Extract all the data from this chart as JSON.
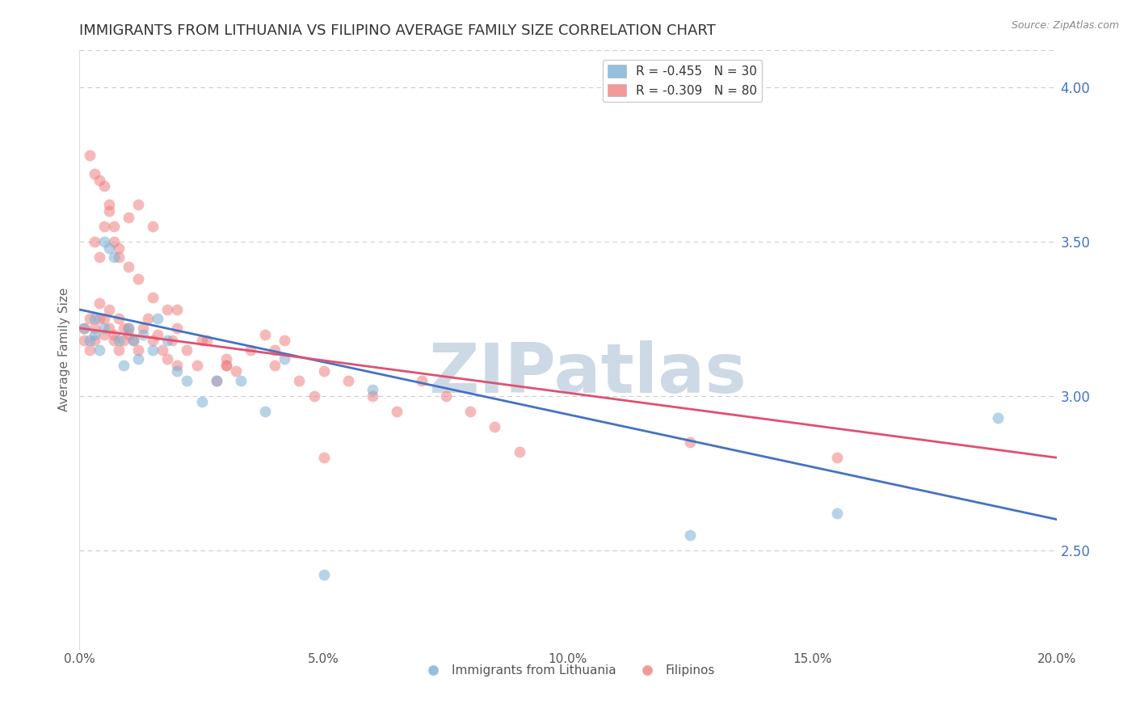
{
  "title": "IMMIGRANTS FROM LITHUANIA VS FILIPINO AVERAGE FAMILY SIZE CORRELATION CHART",
  "source": "Source: ZipAtlas.com",
  "ylabel": "Average Family Size",
  "xlim": [
    0,
    0.2
  ],
  "ylim": [
    2.18,
    4.12
  ],
  "right_yticks": [
    2.5,
    3.0,
    3.5,
    4.0
  ],
  "xtick_labels": [
    "0.0%",
    "",
    "",
    "",
    "",
    "5.0%",
    "",
    "",
    "",
    "",
    "10.0%",
    "",
    "",
    "",
    "",
    "15.0%",
    "",
    "",
    "",
    "",
    "20.0%"
  ],
  "xtick_values": [
    0.0,
    0.01,
    0.02,
    0.03,
    0.04,
    0.05,
    0.06,
    0.07,
    0.08,
    0.09,
    0.1,
    0.11,
    0.12,
    0.13,
    0.14,
    0.15,
    0.16,
    0.17,
    0.18,
    0.19,
    0.2
  ],
  "grid_color": "#cccccc",
  "background_color": "#ffffff",
  "watermark_text": "ZIPatlas",
  "watermark_color": "#cdd9e5",
  "legend_blue_label": "R = -0.455   N = 30",
  "legend_pink_label": "R = -0.309   N = 80",
  "blue_color": "#7bafd4",
  "pink_color": "#f08080",
  "blue_line_color": "#4472c4",
  "pink_line_color": "#e05070",
  "title_fontsize": 13,
  "axis_label_fontsize": 11,
  "tick_fontsize": 11,
  "legend_fontsize": 11,
  "scatter_alpha": 0.55,
  "scatter_size": 100,
  "blue_x": [
    0.001,
    0.002,
    0.003,
    0.003,
    0.004,
    0.005,
    0.005,
    0.006,
    0.007,
    0.008,
    0.009,
    0.01,
    0.011,
    0.012,
    0.013,
    0.015,
    0.016,
    0.018,
    0.02,
    0.022,
    0.025,
    0.028,
    0.033,
    0.038,
    0.042,
    0.05,
    0.06,
    0.125,
    0.155,
    0.188
  ],
  "blue_y": [
    3.22,
    3.18,
    3.25,
    3.2,
    3.15,
    3.22,
    3.5,
    3.48,
    3.45,
    3.18,
    3.1,
    3.22,
    3.18,
    3.12,
    3.2,
    3.15,
    3.25,
    3.18,
    3.08,
    3.05,
    2.98,
    3.05,
    3.05,
    2.95,
    3.12,
    2.42,
    3.02,
    2.55,
    2.62,
    2.93
  ],
  "pink_x": [
    0.001,
    0.001,
    0.002,
    0.002,
    0.003,
    0.003,
    0.004,
    0.004,
    0.005,
    0.005,
    0.006,
    0.006,
    0.007,
    0.007,
    0.008,
    0.008,
    0.009,
    0.009,
    0.01,
    0.01,
    0.011,
    0.012,
    0.013,
    0.014,
    0.015,
    0.016,
    0.017,
    0.018,
    0.019,
    0.02,
    0.022,
    0.024,
    0.026,
    0.028,
    0.03,
    0.032,
    0.035,
    0.038,
    0.04,
    0.042,
    0.045,
    0.048,
    0.05,
    0.055,
    0.06,
    0.065,
    0.07,
    0.075,
    0.08,
    0.085,
    0.003,
    0.004,
    0.005,
    0.006,
    0.007,
    0.008,
    0.01,
    0.012,
    0.015,
    0.018,
    0.02,
    0.025,
    0.03,
    0.002,
    0.003,
    0.004,
    0.005,
    0.006,
    0.007,
    0.008,
    0.01,
    0.012,
    0.015,
    0.02,
    0.03,
    0.04,
    0.05,
    0.09,
    0.125,
    0.155
  ],
  "pink_y": [
    3.22,
    3.18,
    3.25,
    3.15,
    3.22,
    3.18,
    3.25,
    3.3,
    3.2,
    3.25,
    3.22,
    3.28,
    3.2,
    3.18,
    3.25,
    3.15,
    3.22,
    3.18,
    3.2,
    3.22,
    3.18,
    3.15,
    3.22,
    3.25,
    3.18,
    3.2,
    3.15,
    3.12,
    3.18,
    3.1,
    3.15,
    3.1,
    3.18,
    3.05,
    3.12,
    3.08,
    3.15,
    3.2,
    3.1,
    3.18,
    3.05,
    3.0,
    3.08,
    3.05,
    3.0,
    2.95,
    3.05,
    3.0,
    2.95,
    2.9,
    3.5,
    3.45,
    3.55,
    3.6,
    3.5,
    3.45,
    3.42,
    3.38,
    3.32,
    3.28,
    3.22,
    3.18,
    3.1,
    3.78,
    3.72,
    3.7,
    3.68,
    3.62,
    3.55,
    3.48,
    3.58,
    3.62,
    3.55,
    3.28,
    3.1,
    3.15,
    2.8,
    2.82,
    2.85,
    2.8
  ],
  "blue_line_y0": 3.28,
  "blue_line_y1": 2.6,
  "pink_line_y0": 3.22,
  "pink_line_y1": 2.8
}
